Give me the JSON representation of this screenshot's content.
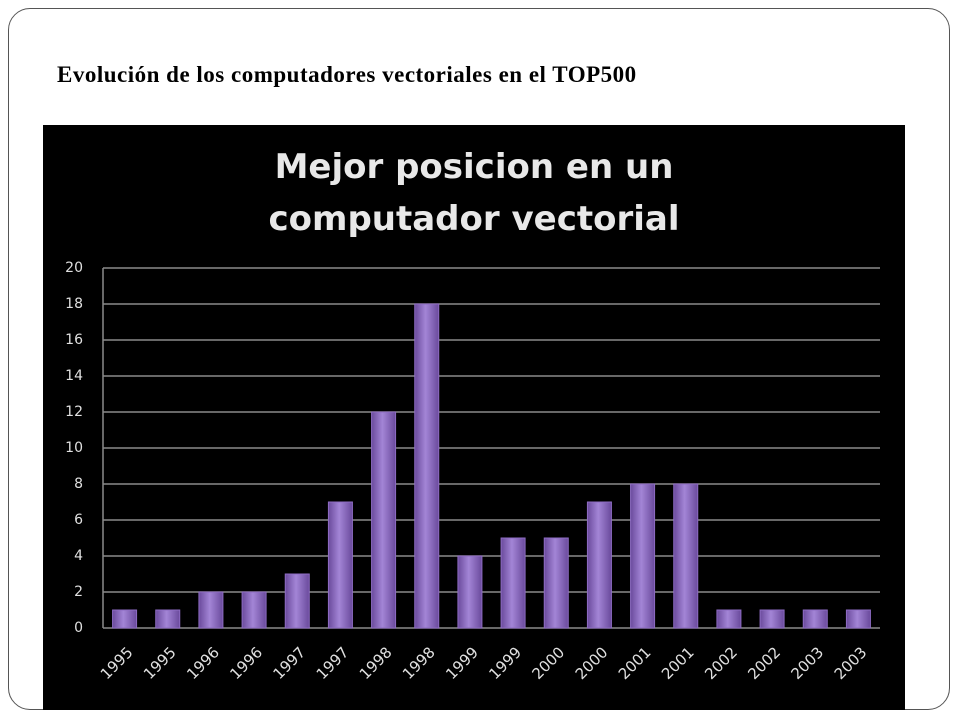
{
  "slide_title": "Evolución de los computadores vectoriales en el TOP500",
  "chart_data": {
    "type": "bar",
    "title": "Mejor posicion en un computador vectorial",
    "categories": [
      "1995",
      "1995",
      "1996",
      "1996",
      "1997",
      "1997",
      "1998",
      "1998",
      "1999",
      "1999",
      "2000",
      "2000",
      "2001",
      "2001",
      "2002",
      "2002",
      "2003",
      "2003"
    ],
    "values": [
      1,
      1,
      2,
      2,
      3,
      7,
      12,
      18,
      4,
      5,
      5,
      7,
      8,
      8,
      1,
      1,
      1,
      1
    ],
    "color": "#8e6cc4",
    "ylim": [
      0,
      20
    ],
    "yticks": [
      0,
      2,
      4,
      6,
      8,
      10,
      12,
      14,
      16,
      18,
      20
    ],
    "grid": true
  }
}
